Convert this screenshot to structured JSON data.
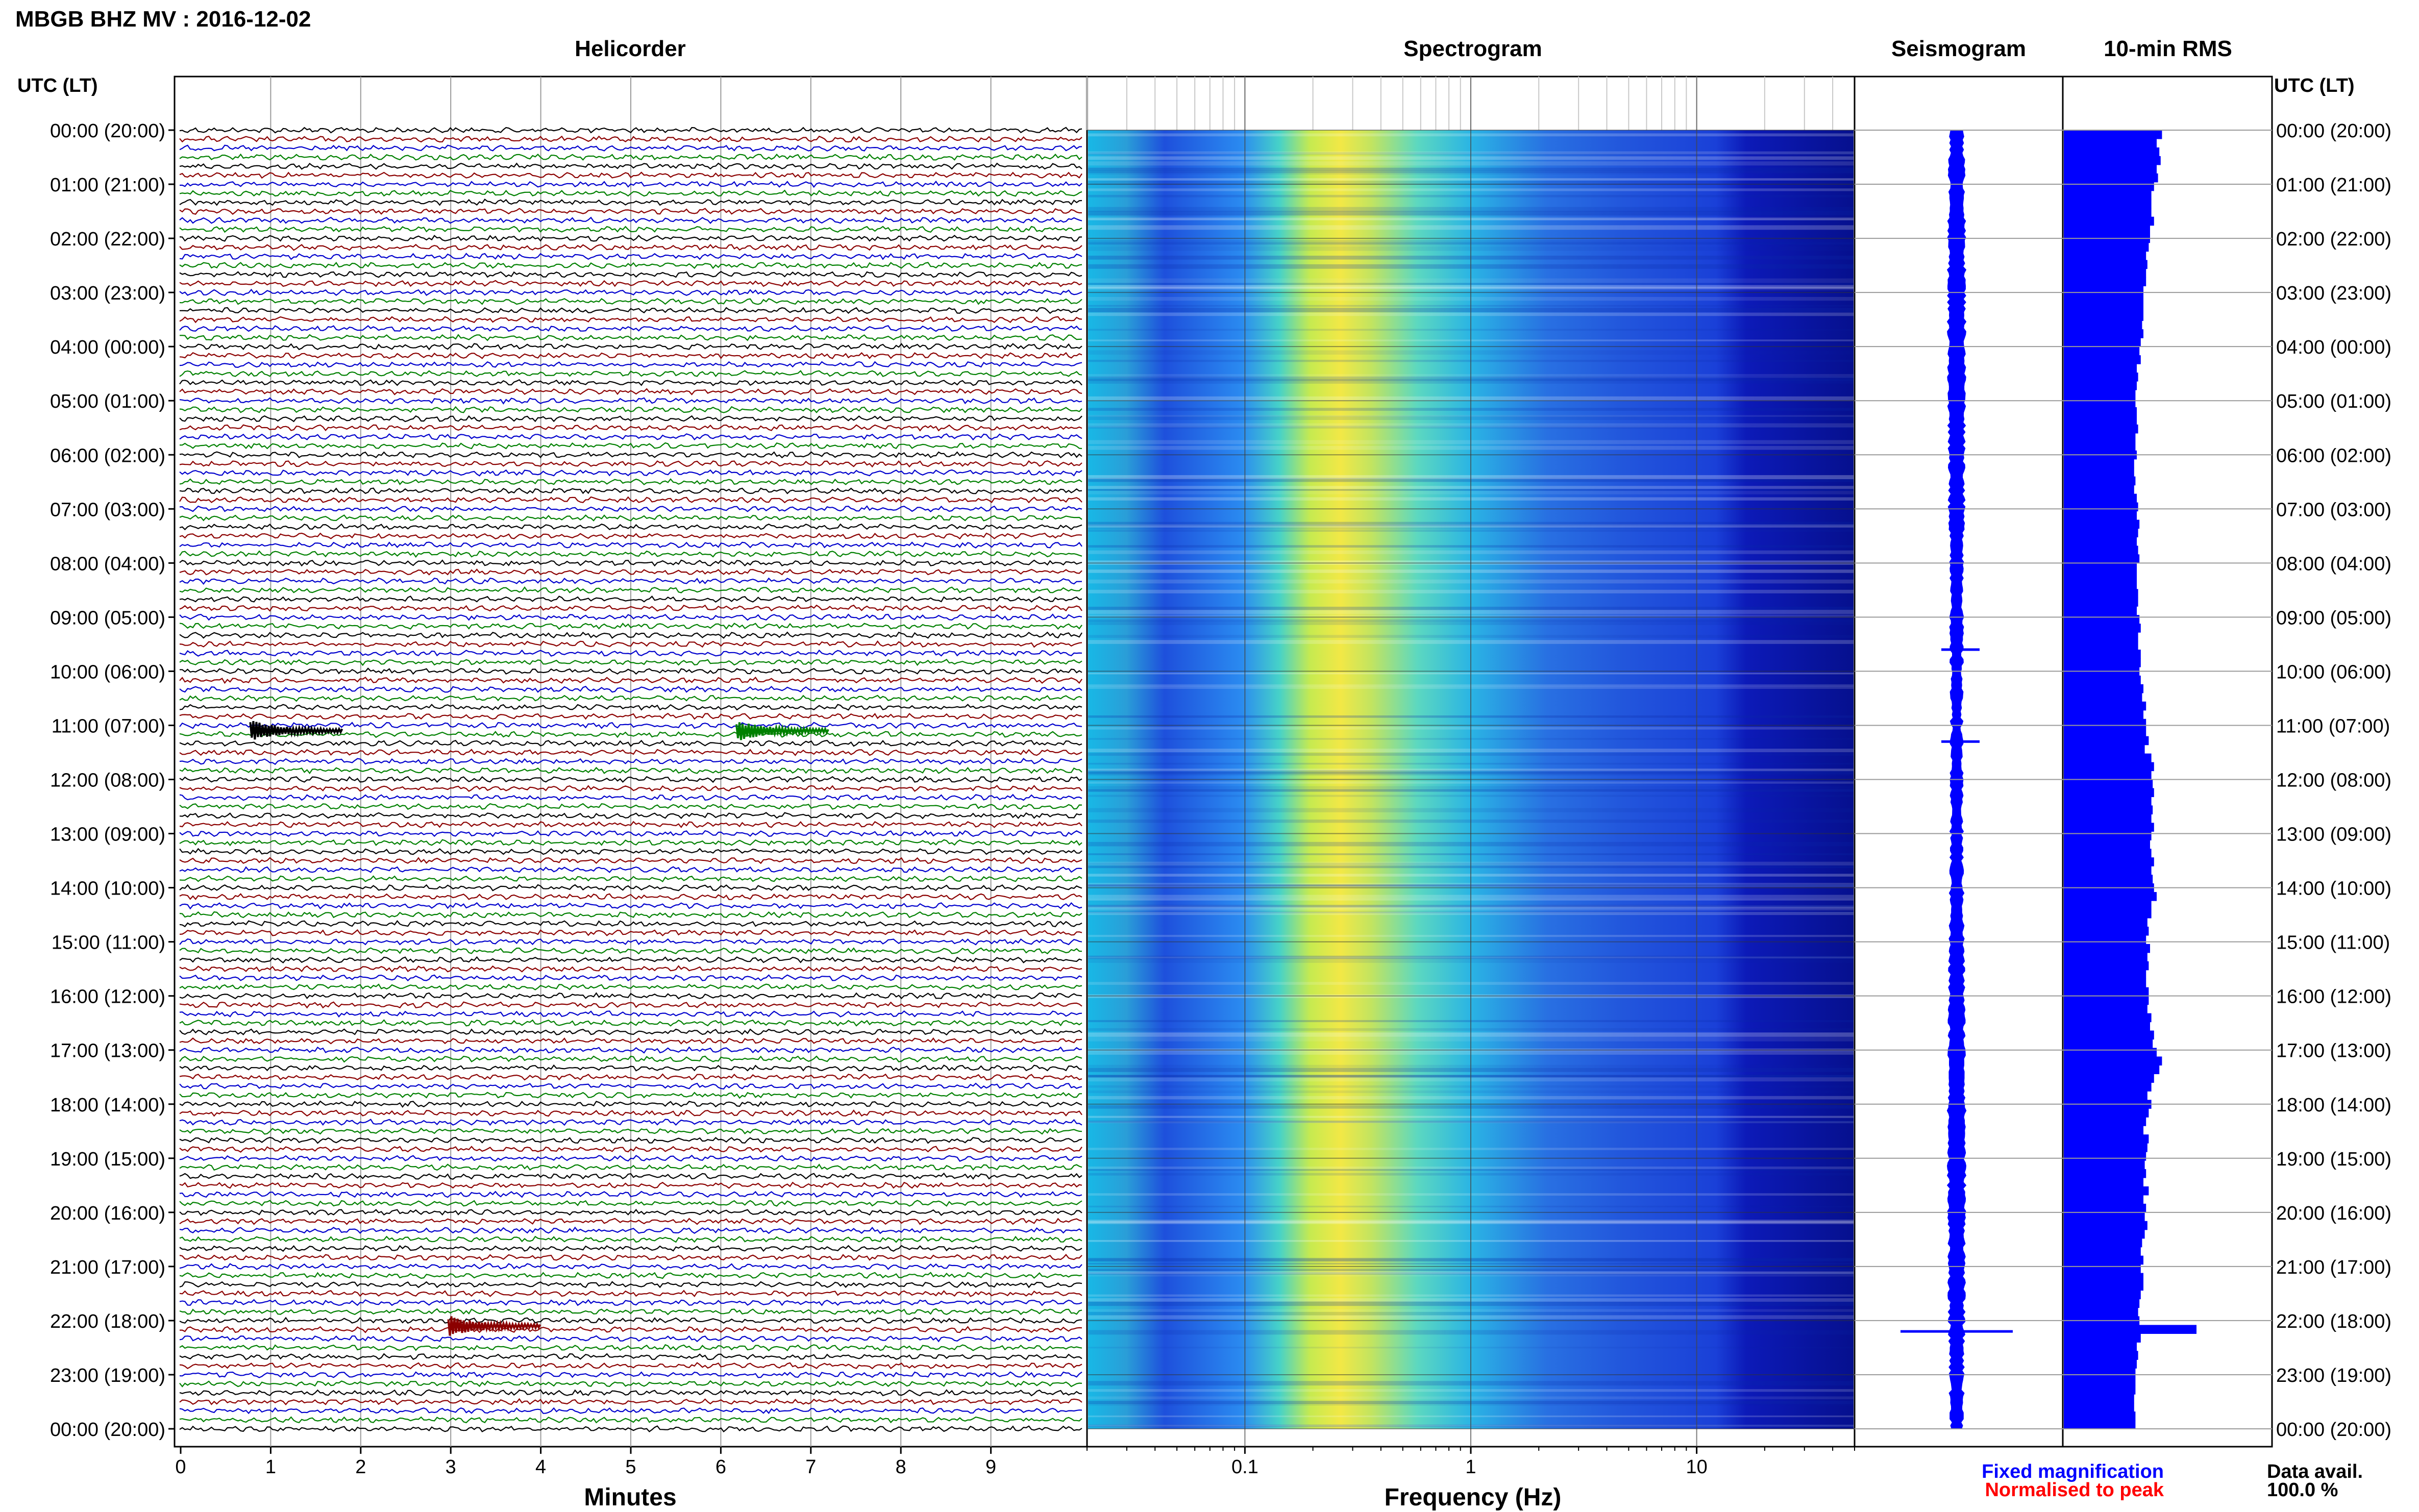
{
  "title": "MBGB BHZ MV : 2016-12-02",
  "utc_label": "UTC (LT)",
  "panels": {
    "helicorder": "Helicorder",
    "spectrogram": "Spectrogram",
    "seismogram": "Seismogram",
    "rms": "10-min RMS"
  },
  "time_labels": [
    "00:00 (20:00)",
    "01:00 (21:00)",
    "02:00 (22:00)",
    "03:00 (23:00)",
    "04:00 (00:00)",
    "05:00 (01:00)",
    "06:00 (02:00)",
    "07:00 (03:00)",
    "08:00 (04:00)",
    "09:00 (05:00)",
    "10:00 (06:00)",
    "11:00 (07:00)",
    "12:00 (08:00)",
    "13:00 (09:00)",
    "14:00 (10:00)",
    "15:00 (11:00)",
    "16:00 (12:00)",
    "17:00 (13:00)",
    "18:00 (14:00)",
    "19:00 (15:00)",
    "20:00 (16:00)",
    "21:00 (17:00)",
    "22:00 (18:00)",
    "23:00 (19:00)",
    "00:00 (20:00)"
  ],
  "helicorder_axis": {
    "label": "Minutes",
    "ticks": [
      "0",
      "1",
      "2",
      "3",
      "4",
      "5",
      "6",
      "7",
      "8",
      "9"
    ]
  },
  "spectrogram_axis": {
    "label": "Frequency (Hz)",
    "ticks": [
      "0.1",
      "1",
      "10"
    ]
  },
  "legend": {
    "fixed": "Fixed magnification",
    "normalised": "Normalised to peak",
    "fixed_color": "#0000ff",
    "normalised_color": "#ff0000"
  },
  "data_avail": {
    "label": "Data avail.",
    "value": "100.0 %"
  },
  "colors": {
    "trace_cycle": [
      "#000000",
      "#8b0000",
      "#0000cd",
      "#008000"
    ],
    "rms_bar": "#0000ff",
    "seismogram": "#0000ff"
  },
  "chart_data": [
    {
      "type": "line",
      "title": "Helicorder",
      "xlabel": "Minutes",
      "xlim": [
        0,
        10
      ],
      "rows_per_hour": 6,
      "hours": 24,
      "events": [
        {
          "hour": 11.1,
          "minute": 1.0,
          "color": "#000000"
        },
        {
          "hour": 11.1,
          "minute": 6.4,
          "color": "#008000"
        },
        {
          "hour": 22.1,
          "minute": 3.2,
          "color": "#8b0000"
        }
      ]
    },
    {
      "type": "heatmap",
      "title": "Spectrogram",
      "xlabel": "Frequency (Hz)",
      "x_scale": "log",
      "xlim": [
        0.02,
        50
      ],
      "peak_frequency_hz": 0.35
    },
    {
      "type": "line",
      "title": "Seismogram",
      "events_hours": [
        9.6,
        11.3,
        22.2
      ]
    },
    {
      "type": "bar",
      "title": "10-min RMS",
      "interval_minutes": 10,
      "values": [
        0.74,
        0.7,
        0.72,
        0.73,
        0.7,
        0.71,
        0.68,
        0.66,
        0.66,
        0.66,
        0.68,
        0.65,
        0.65,
        0.64,
        0.62,
        0.63,
        0.62,
        0.62,
        0.6,
        0.6,
        0.6,
        0.6,
        0.59,
        0.6,
        0.58,
        0.57,
        0.58,
        0.55,
        0.56,
        0.55,
        0.54,
        0.54,
        0.55,
        0.55,
        0.56,
        0.54,
        0.54,
        0.55,
        0.53,
        0.53,
        0.54,
        0.53,
        0.55,
        0.56,
        0.55,
        0.57,
        0.56,
        0.55,
        0.56,
        0.57,
        0.55,
        0.55,
        0.55,
        0.56,
        0.56,
        0.55,
        0.57,
        0.58,
        0.56,
        0.56,
        0.58,
        0.58,
        0.57,
        0.58,
        0.6,
        0.59,
        0.62,
        0.6,
        0.62,
        0.62,
        0.64,
        0.61,
        0.66,
        0.68,
        0.66,
        0.67,
        0.68,
        0.66,
        0.67,
        0.66,
        0.68,
        0.66,
        0.65,
        0.66,
        0.68,
        0.66,
        0.67,
        0.68,
        0.7,
        0.66,
        0.66,
        0.63,
        0.64,
        0.62,
        0.65,
        0.63,
        0.64,
        0.62,
        0.62,
        0.64,
        0.64,
        0.63,
        0.66,
        0.65,
        0.68,
        0.67,
        0.7,
        0.74,
        0.72,
        0.68,
        0.66,
        0.63,
        0.66,
        0.64,
        0.62,
        0.6,
        0.64,
        0.63,
        0.62,
        0.61,
        0.62,
        0.6,
        0.64,
        0.6,
        0.62,
        0.61,
        0.63,
        0.61,
        0.59,
        0.58,
        0.6,
        0.58,
        0.6,
        0.6,
        0.58,
        0.57,
        0.56,
        0.57,
        1.0,
        0.58,
        0.55,
        0.56,
        0.55,
        0.54,
        0.54,
        0.54,
        0.53,
        0.53,
        0.54,
        0.54
      ]
    }
  ]
}
